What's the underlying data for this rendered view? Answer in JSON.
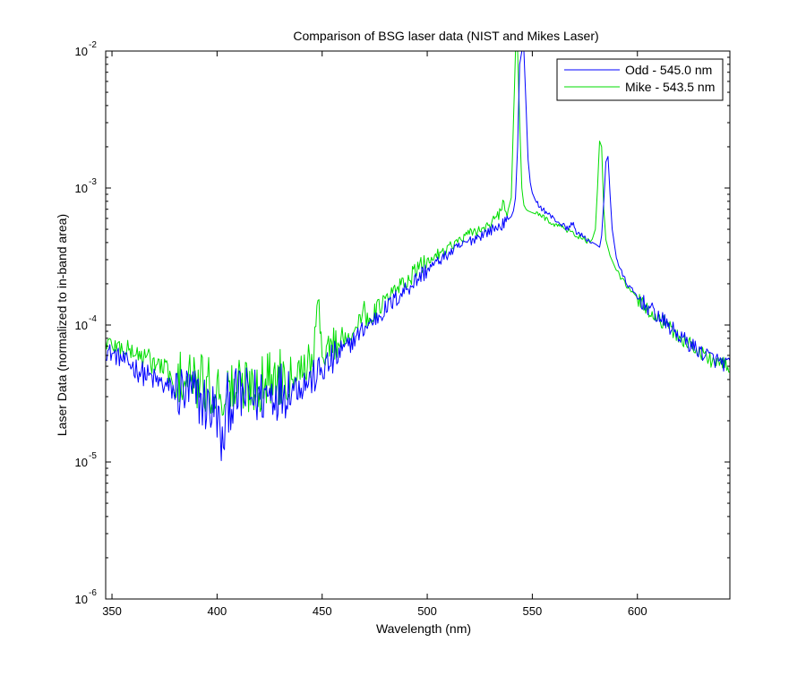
{
  "chart_data": {
    "type": "line",
    "title": "Comparison of BSG laser data (NIST and Mikes Laser)",
    "xlabel": "Wavelength (nm)",
    "ylabel": "Laser Data (normalized to in-band area)",
    "xlim": [
      347,
      644
    ],
    "ylim": [
      1e-06,
      0.01
    ],
    "yscale": "log",
    "grid": false,
    "legend_position": "top-right",
    "x_ticks": [
      350,
      400,
      450,
      500,
      550,
      600
    ],
    "x_tick_labels": [
      "350",
      "400",
      "450",
      "500",
      "550",
      "600"
    ],
    "y_ticks": [
      {
        "value": 1e-06,
        "base": "10",
        "exp": "-6"
      },
      {
        "value": 1e-05,
        "base": "10",
        "exp": "-5"
      },
      {
        "value": 0.0001,
        "base": "10",
        "exp": "-4"
      },
      {
        "value": 0.001,
        "base": "10",
        "exp": "-3"
      },
      {
        "value": 0.01,
        "base": "10",
        "exp": "-2"
      }
    ],
    "series": [
      {
        "name": "Odd - 545.0 nm",
        "color": "#0000ff",
        "x": [
          347,
          350,
          355,
          360,
          365,
          370,
          375,
          380,
          385,
          390,
          395,
          400,
          402.5,
          405,
          410,
          415,
          420,
          425,
          430,
          435,
          440,
          445,
          450,
          455,
          460,
          465,
          470,
          475,
          480,
          485,
          490,
          495,
          500,
          505,
          510,
          515,
          520,
          525,
          530,
          535,
          538,
          540,
          541,
          542,
          543,
          544,
          545,
          546,
          547,
          548,
          549,
          550,
          552,
          555,
          560,
          565,
          567,
          569,
          571,
          575,
          580,
          582,
          583,
          584,
          585,
          586,
          587,
          588,
          590,
          592,
          595,
          600,
          605,
          610,
          615,
          620,
          625,
          630,
          635,
          640,
          644
        ],
        "y": [
          6.5e-05,
          6.2e-05,
          5.6e-05,
          5e-05,
          4.4e-05,
          4e-05,
          3.6e-05,
          3.3e-05,
          3.2e-05,
          3e-05,
          2.6e-05,
          2.3e-05,
          1.2e-05,
          2.7e-05,
          3e-05,
          3e-05,
          3e-05,
          3.2e-05,
          3.4e-05,
          3.5e-05,
          3.7e-05,
          4e-05,
          4.7e-05,
          5.5e-05,
          6.5e-05,
          7.8e-05,
          9.5e-05,
          0.00011,
          0.00013,
          0.000155,
          0.000185,
          0.000215,
          0.000255,
          0.00029,
          0.00033,
          0.00037,
          0.00041,
          0.00045,
          0.00049,
          0.00053,
          0.00058,
          0.00062,
          0.00068,
          0.00085,
          0.002,
          0.008,
          0.01,
          0.01,
          0.004,
          0.0016,
          0.0011,
          0.00092,
          0.00078,
          0.0007,
          0.0006,
          0.00053,
          0.0005,
          0.00056,
          0.00048,
          0.00043,
          0.00039,
          0.00037,
          0.00045,
          0.0008,
          0.00155,
          0.0017,
          0.0009,
          0.0005,
          0.00031,
          0.00025,
          0.0002,
          0.00016,
          0.000135,
          0.000115,
          9.8e-05,
          8.3e-05,
          7.2e-05,
          6.4e-05,
          5.8e-05,
          5.3e-05,
          5.1e-05
        ]
      },
      {
        "name": "Mike - 543.5 nm",
        "color": "#00dd00",
        "x": [
          347,
          350,
          355,
          360,
          365,
          370,
          375,
          378,
          380,
          382,
          385,
          390,
          395,
          400,
          405,
          410,
          415,
          420,
          425,
          430,
          435,
          440,
          445,
          447,
          448,
          449,
          451,
          455,
          460,
          465,
          469,
          470,
          471,
          473,
          475,
          480,
          485,
          490,
          495,
          500,
          505,
          510,
          515,
          520,
          525,
          530,
          534,
          536,
          538,
          540,
          541,
          542,
          543,
          544,
          545,
          546,
          547,
          548,
          550,
          555,
          560,
          565,
          570,
          575,
          578,
          580,
          581,
          582,
          583,
          584,
          585,
          587,
          590,
          595,
          600,
          605,
          610,
          615,
          620,
          625,
          630,
          635,
          640,
          644
        ],
        "y": [
          7.5e-05,
          7.2e-05,
          6.8e-05,
          6.4e-05,
          5.8e-05,
          5.3e-05,
          4.8e-05,
          4.4e-05,
          2.5e-05,
          4.2e-05,
          4e-05,
          3.8e-05,
          3.6e-05,
          3.3e-05,
          3.3e-05,
          3.6e-05,
          3.6e-05,
          3.8e-05,
          4e-05,
          4.3e-05,
          4.6e-05,
          5e-05,
          5.6e-05,
          8e-05,
          0.00017,
          8e-05,
          6.5e-05,
          7.2e-05,
          8e-05,
          9e-05,
          0.00011,
          0.00016,
          0.00011,
          0.000115,
          0.000125,
          0.00015,
          0.00018,
          0.00021,
          0.00025,
          0.00029,
          0.00033,
          0.00037,
          0.00041,
          0.00046,
          0.0005,
          0.00054,
          0.00063,
          0.00078,
          0.00065,
          0.00085,
          0.003,
          0.01,
          0.01,
          0.003,
          0.001,
          0.00075,
          0.0007,
          0.00068,
          0.00066,
          0.00062,
          0.00055,
          0.00051,
          0.00046,
          0.00042,
          0.0004,
          0.0005,
          0.001,
          0.0022,
          0.002,
          0.0007,
          0.00042,
          0.00032,
          0.00025,
          0.00019,
          0.000155,
          0.00013,
          0.00011,
          9.5e-05,
          8.2e-05,
          7.2e-05,
          6.3e-05,
          5.6e-05,
          5.2e-05,
          4.8e-05
        ]
      }
    ]
  }
}
